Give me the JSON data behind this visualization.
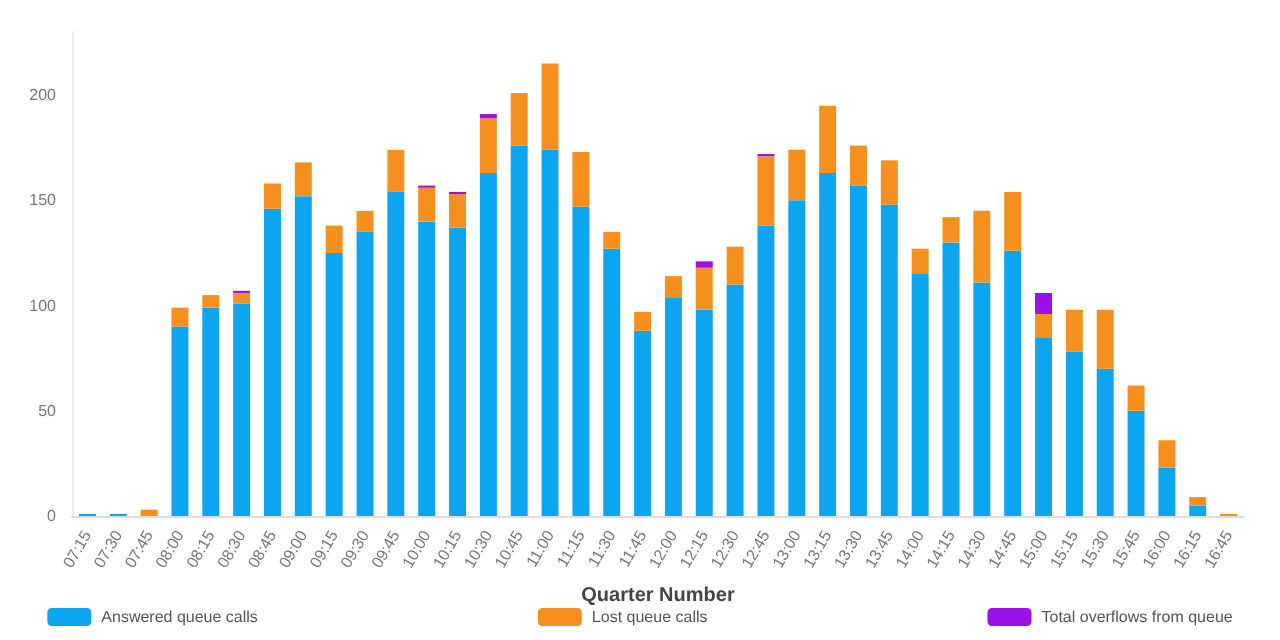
{
  "chart_data": {
    "type": "bar",
    "stacked": true,
    "xlabel": "Quarter Number",
    "categories": [
      "07:15",
      "07:30",
      "07:45",
      "08:00",
      "08:15",
      "08:30",
      "08:45",
      "09:00",
      "09:15",
      "09:30",
      "09:45",
      "10:00",
      "10:15",
      "10:30",
      "10:45",
      "11:00",
      "11:15",
      "11:30",
      "11:45",
      "12:00",
      "12:15",
      "12:30",
      "12:45",
      "13:00",
      "13:15",
      "13:30",
      "13:45",
      "14:00",
      "14:15",
      "14:30",
      "14:45",
      "15:00",
      "15:15",
      "15:30",
      "15:45",
      "16:00",
      "16:15",
      "16:45"
    ],
    "series": [
      {
        "name": "Answered queue calls",
        "color": "#0ea5f0",
        "values": [
          1,
          1,
          0,
          90,
          99,
          101,
          146,
          152,
          125,
          135,
          154,
          140,
          137,
          163,
          176,
          174,
          147,
          127,
          88,
          104,
          98,
          110,
          138,
          150,
          163,
          157,
          148,
          115,
          130,
          111,
          126,
          85,
          78,
          70,
          50,
          23,
          5,
          0
        ]
      },
      {
        "name": "Lost queue calls",
        "color": "#f5901e",
        "values": [
          0,
          0,
          3,
          9,
          6,
          5,
          12,
          16,
          13,
          10,
          20,
          16,
          16,
          26,
          25,
          41,
          26,
          8,
          9,
          10,
          20,
          18,
          33,
          24,
          32,
          19,
          21,
          12,
          12,
          34,
          28,
          11,
          20,
          28,
          12,
          13,
          4,
          1
        ]
      },
      {
        "name": "Total overflows from queue",
        "color": "#9b10e8",
        "values": [
          0,
          0,
          0,
          0,
          0,
          1,
          0,
          0,
          0,
          0,
          0,
          1,
          1,
          2,
          0,
          0,
          0,
          0,
          0,
          0,
          3,
          0,
          1,
          0,
          0,
          0,
          0,
          0,
          0,
          0,
          0,
          10,
          0,
          0,
          0,
          0,
          0,
          0
        ]
      }
    ],
    "ylim": [
      0,
      230
    ],
    "yticks": [
      0,
      50,
      100,
      150,
      200
    ],
    "grid": false,
    "legend": "bottom"
  }
}
